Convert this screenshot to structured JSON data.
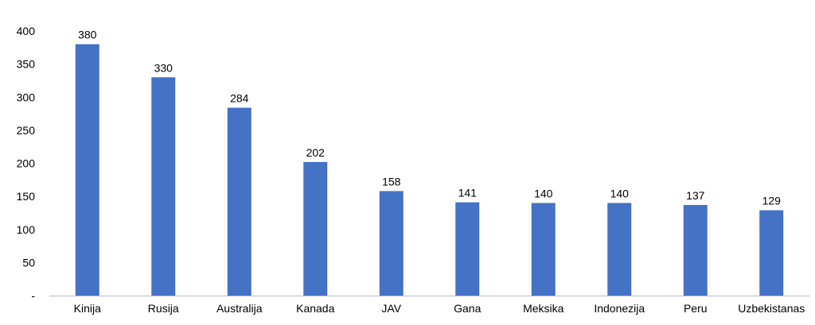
{
  "chart_data": {
    "type": "bar",
    "categories": [
      "Kinija",
      "Rusija",
      "Australija",
      "Kanada",
      "JAV",
      "Gana",
      "Meksika",
      "Indonezija",
      "Peru",
      "Uzbekistanas"
    ],
    "values": [
      380,
      330,
      284,
      202,
      158,
      141,
      140,
      140,
      137,
      129
    ],
    "data_labels": [
      "380",
      "330",
      "284",
      "202",
      "158",
      "141",
      "140",
      "140",
      "137",
      "129"
    ],
    "ylim": [
      0,
      400
    ],
    "yticks": [
      0,
      50,
      100,
      150,
      200,
      250,
      300,
      350,
      400
    ],
    "ytick_labels": [
      "-",
      "50",
      "100",
      "150",
      "200",
      "250",
      "300",
      "350",
      "400"
    ],
    "grid": false,
    "legend": "none",
    "bar_color": "#4472C4",
    "axis_color": "#BFBFBF"
  }
}
